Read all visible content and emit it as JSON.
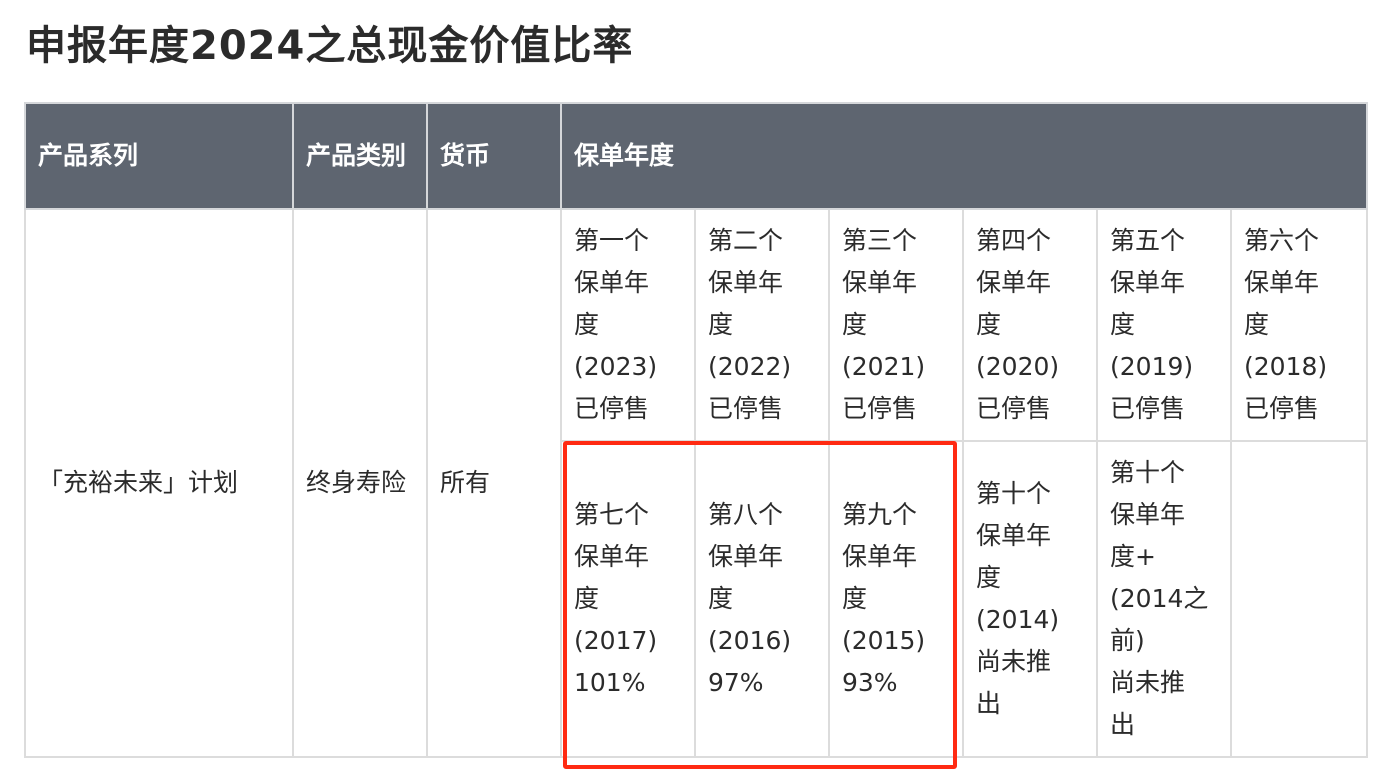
{
  "page": {
    "title": "申报年度2024之总现金价值比率"
  },
  "table": {
    "headers": {
      "series": "产品系列",
      "category": "产品类别",
      "currency": "货币",
      "policy_year": "保单年度"
    },
    "row": {
      "series": "「充裕未来」计划",
      "category": "终身寿险",
      "currency": "所有"
    },
    "years_row1": [
      "第一个\n保单年\n度\n(2023)\n已停售",
      "第二个\n保单年\n度\n(2022)\n已停售",
      "第三个\n保单年\n度\n(2021)\n已停售",
      "第四个\n保单年\n度\n(2020)\n已停售",
      "第五个\n保单年\n度\n(2019)\n已停售",
      "第六个\n保单年\n度\n(2018)\n已停售"
    ],
    "years_row2": [
      "第七个\n保单年\n度\n(2017)\n101%",
      "第八个\n保单年\n度\n(2016)\n97%",
      "第九个\n保单年\n度\n(2015)\n93%",
      "第十个\n保单年\n度\n(2014)\n尚未推\n出",
      "第十个\n保单年\n度+\n(2014之\n前)\n尚未推\n出",
      ""
    ]
  },
  "colors": {
    "header_bg": "#5e6570",
    "highlight": "#ff2a12",
    "border": "#dcdcdc"
  }
}
